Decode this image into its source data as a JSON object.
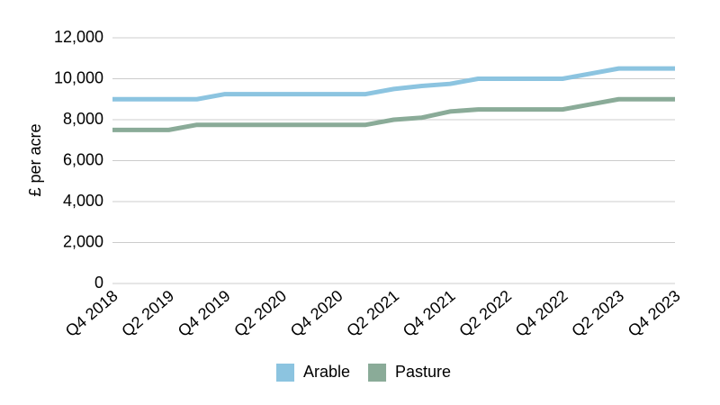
{
  "chart_data": {
    "type": "line",
    "y_label": "£ per acre",
    "categories": [
      "Q4 2018",
      null,
      "Q2 2019",
      null,
      "Q4 2019",
      null,
      "Q2 2020",
      null,
      "Q4 2020",
      null,
      "Q2 2021",
      null,
      "Q4 2021",
      null,
      "Q2 2022",
      null,
      "Q4 2022",
      null,
      "Q2 2023",
      null,
      "Q4 2023"
    ],
    "series": [
      {
        "name": "Arable",
        "color": "#8cc4e0",
        "values": [
          9000,
          9000,
          9000,
          9000,
          9250,
          9250,
          9250,
          9250,
          9250,
          9250,
          9500,
          9650,
          9750,
          10000,
          10000,
          10000,
          10000,
          10250,
          10500,
          10500,
          10500
        ]
      },
      {
        "name": "Pasture",
        "color": "#8aab98",
        "values": [
          7500,
          7500,
          7500,
          7750,
          7750,
          7750,
          7750,
          7750,
          7750,
          7750,
          8000,
          8100,
          8400,
          8500,
          8500,
          8500,
          8500,
          8750,
          9000,
          9000,
          9000
        ]
      }
    ],
    "ylim": [
      0,
      12000
    ],
    "yticks": [
      0,
      {
        "value": 2000,
        "label": "2,000"
      },
      {
        "value": 4000,
        "label": "4,000"
      },
      {
        "value": 6000,
        "label": "6,000"
      },
      {
        "value": 8000,
        "label": "8,000"
      },
      {
        "value": 10000,
        "label": "10,000"
      },
      {
        "value": 12000,
        "label": "12,000"
      }
    ],
    "grid": true,
    "legend": "bottom"
  }
}
